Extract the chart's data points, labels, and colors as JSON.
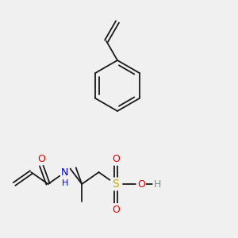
{
  "background_color": "#f0f0f0",
  "line_color": "#1a1a1a",
  "figsize": [
    3.0,
    3.0
  ],
  "dpi": 100,
  "lw": 1.3,
  "colors": {
    "C": "#1a1a1a",
    "O": "#dd0000",
    "N": "#0000cc",
    "S": "#ccaa00",
    "H": "#7a9090"
  }
}
